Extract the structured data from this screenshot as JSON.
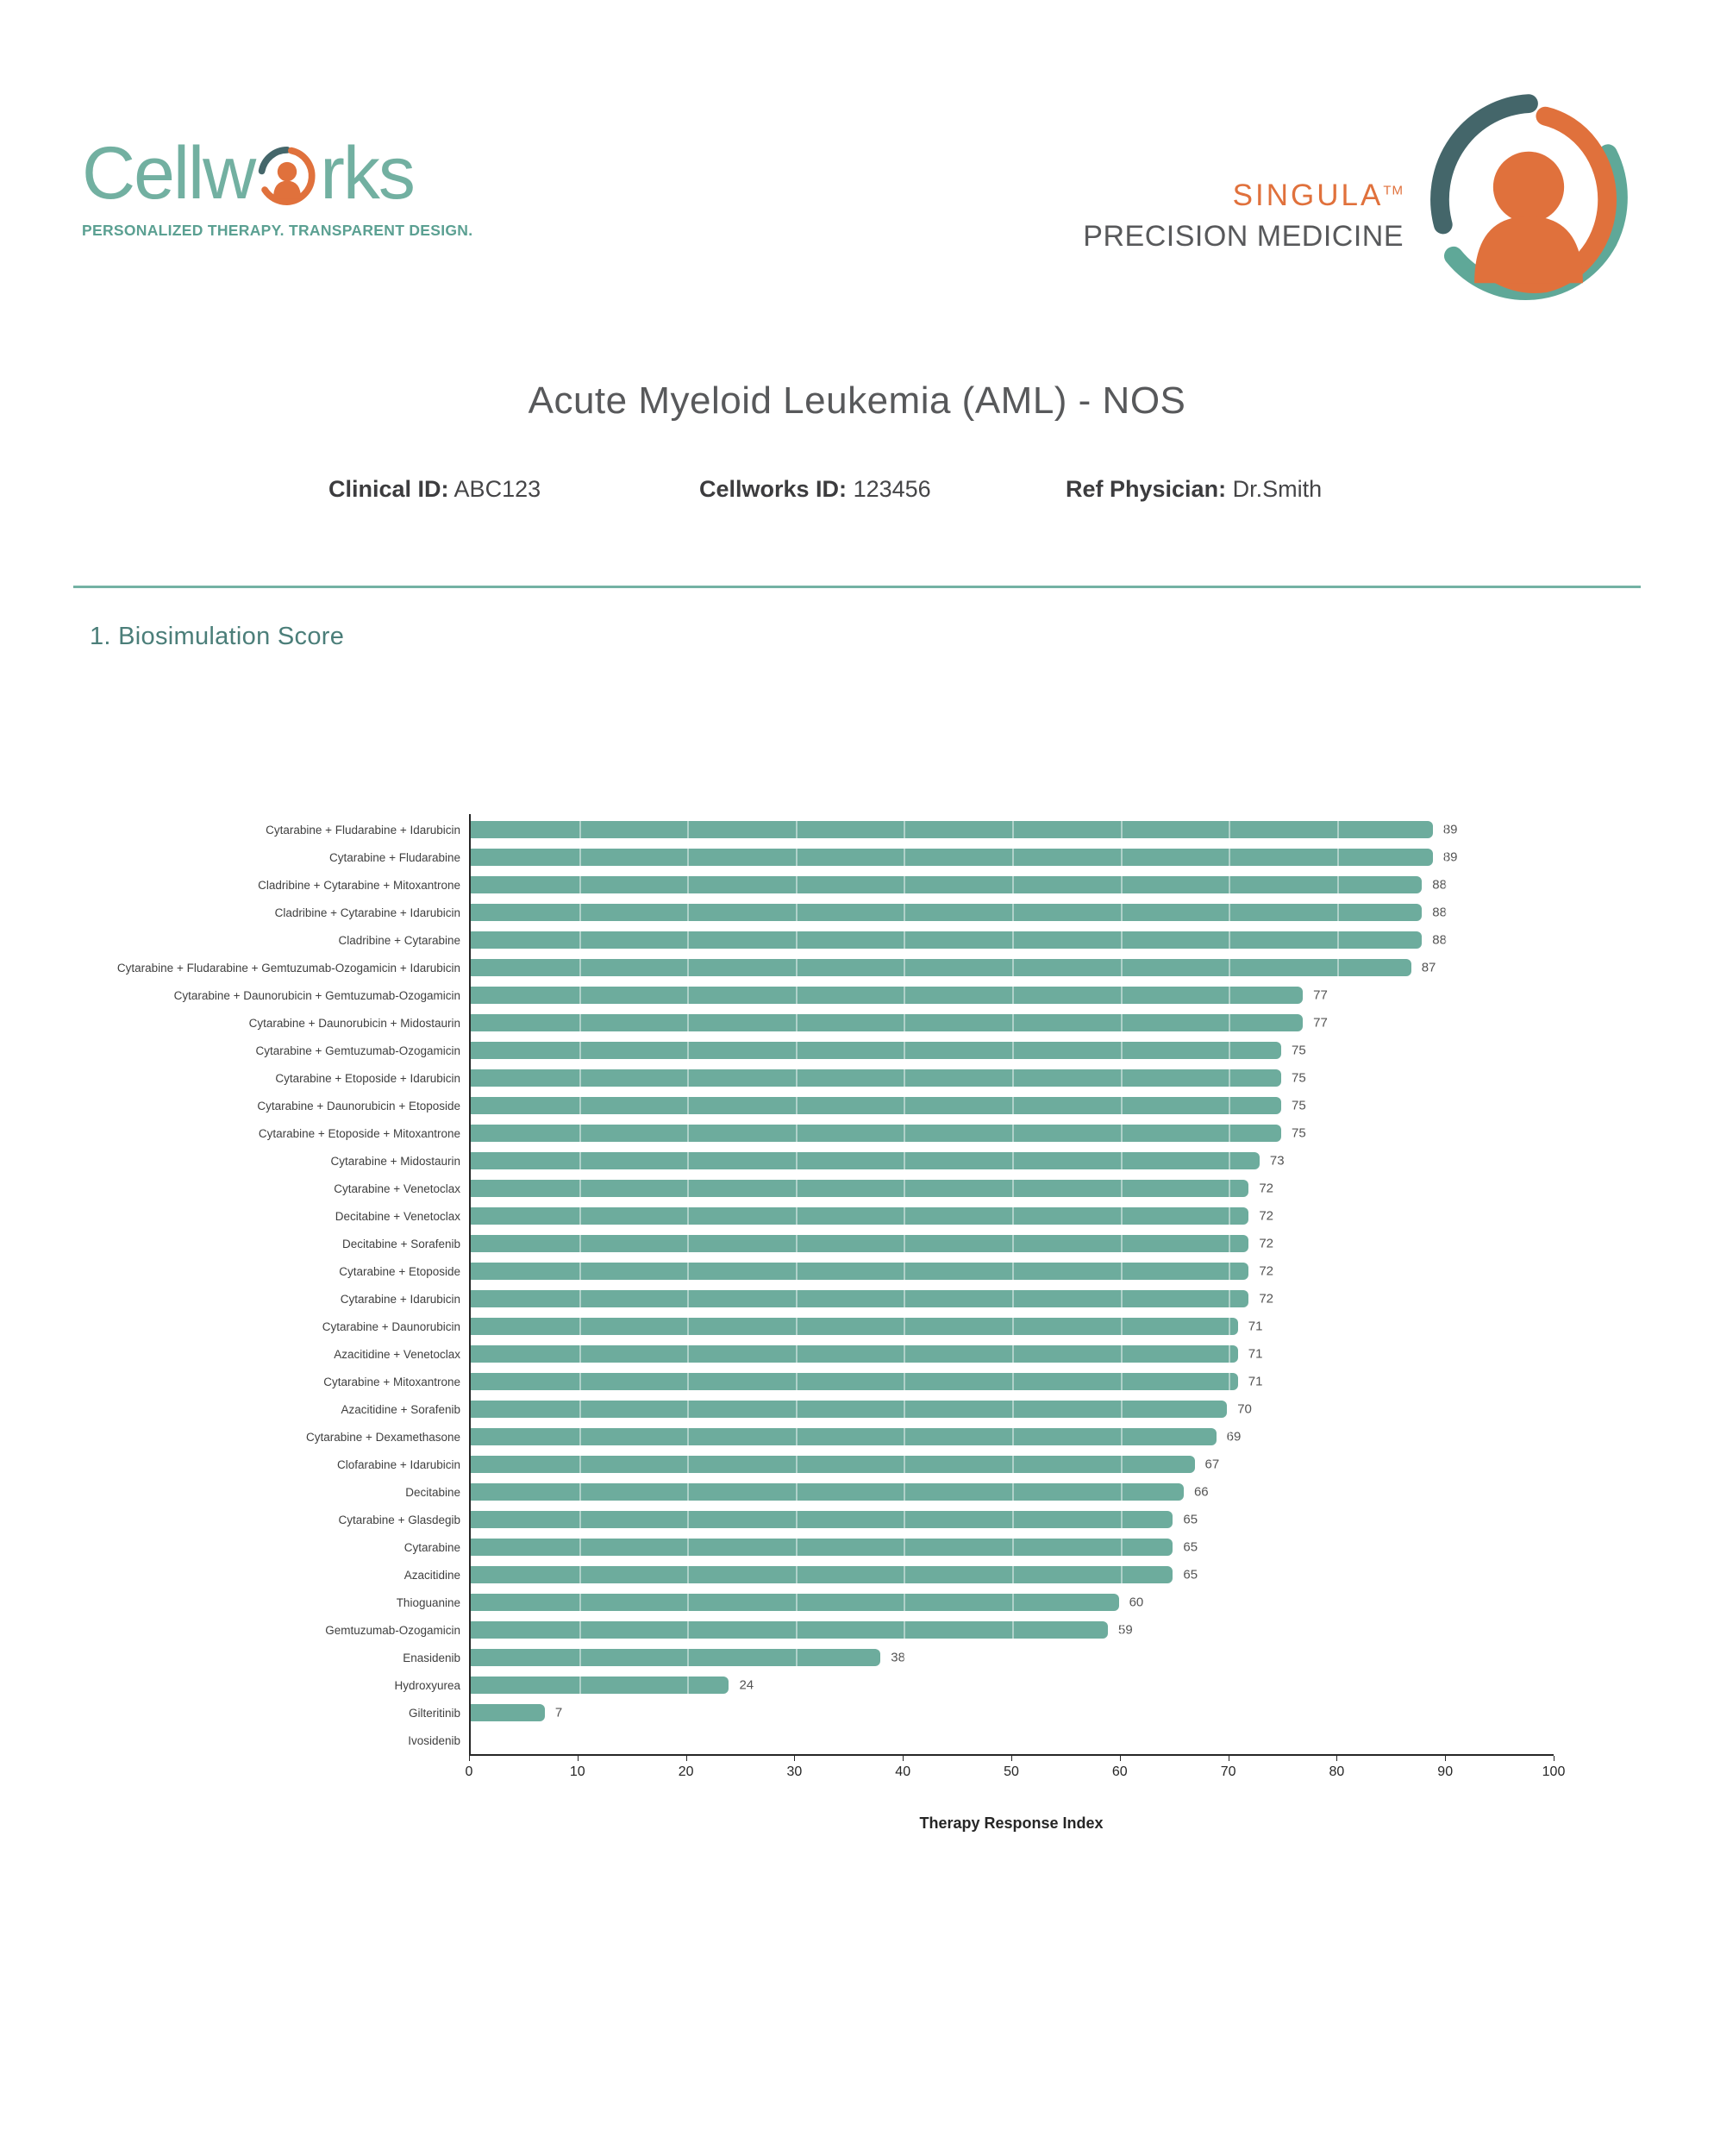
{
  "brand": {
    "word_left": "Cellw",
    "word_right": "rks",
    "tagline": "PERSONALIZED THERAPY. TRANSPARENT DESIGN."
  },
  "product": {
    "name": "SINGULA",
    "tm": "TM",
    "subtitle": "PRECISION MEDICINE"
  },
  "report": {
    "title": "Acute Myeloid Leukemia (AML) - NOS",
    "fields": [
      {
        "label": "Clinical ID:",
        "value": "ABC123"
      },
      {
        "label": "Cellworks ID:",
        "value": "123456"
      },
      {
        "label": "Ref Physician:",
        "value": "Dr.Smith"
      }
    ]
  },
  "section_heading": "1. Biosimulation Score",
  "colors": {
    "bar_teal": "#6dac9d",
    "logo_teal": "#72b0a1",
    "logo_orange": "#e0713c",
    "logo_dark_teal": "#44666a",
    "heading_teal": "#4b7e79",
    "title_gray": "#58595b"
  },
  "chart_data": {
    "type": "bar",
    "orientation": "horizontal",
    "title": "",
    "xlabel": "Therapy Response Index",
    "ylabel": "",
    "xlim": [
      0,
      100
    ],
    "xticks": [
      0,
      10,
      20,
      30,
      40,
      50,
      60,
      70,
      80,
      90,
      100
    ],
    "grid": "white vertical gridlines over bars",
    "bar_color": "#6dac9d",
    "categories": [
      "Cytarabine + Fludarabine + Idarubicin",
      "Cytarabine + Fludarabine",
      "Cladribine + Cytarabine + Mitoxantrone",
      "Cladribine + Cytarabine + Idarubicin",
      "Cladribine + Cytarabine",
      "Cytarabine + Fludarabine + Gemtuzumab-Ozogamicin + Idarubicin",
      "Cytarabine + Daunorubicin + Gemtuzumab-Ozogamicin",
      "Cytarabine + Daunorubicin + Midostaurin",
      "Cytarabine + Gemtuzumab-Ozogamicin",
      "Cytarabine + Etoposide + Idarubicin",
      "Cytarabine + Daunorubicin + Etoposide",
      "Cytarabine + Etoposide + Mitoxantrone",
      "Cytarabine + Midostaurin",
      "Cytarabine + Venetoclax",
      "Decitabine + Venetoclax",
      "Decitabine + Sorafenib",
      "Cytarabine + Etoposide",
      "Cytarabine + Idarubicin",
      "Cytarabine + Daunorubicin",
      "Azacitidine + Venetoclax",
      "Cytarabine + Mitoxantrone",
      "Azacitidine + Sorafenib",
      "Cytarabine + Dexamethasone",
      "Clofarabine + Idarubicin",
      "Decitabine",
      "Cytarabine + Glasdegib",
      "Cytarabine",
      "Azacitidine",
      "Thioguanine",
      "Gemtuzumab-Ozogamicin",
      "Enasidenib",
      "Hydroxyurea",
      "Gilteritinib",
      "Ivosidenib"
    ],
    "values": [
      89,
      89,
      88,
      88,
      88,
      87,
      77,
      77,
      75,
      75,
      75,
      75,
      73,
      72,
      72,
      72,
      72,
      72,
      71,
      71,
      71,
      70,
      69,
      67,
      66,
      65,
      65,
      65,
      60,
      59,
      38,
      24,
      7,
      0
    ]
  }
}
